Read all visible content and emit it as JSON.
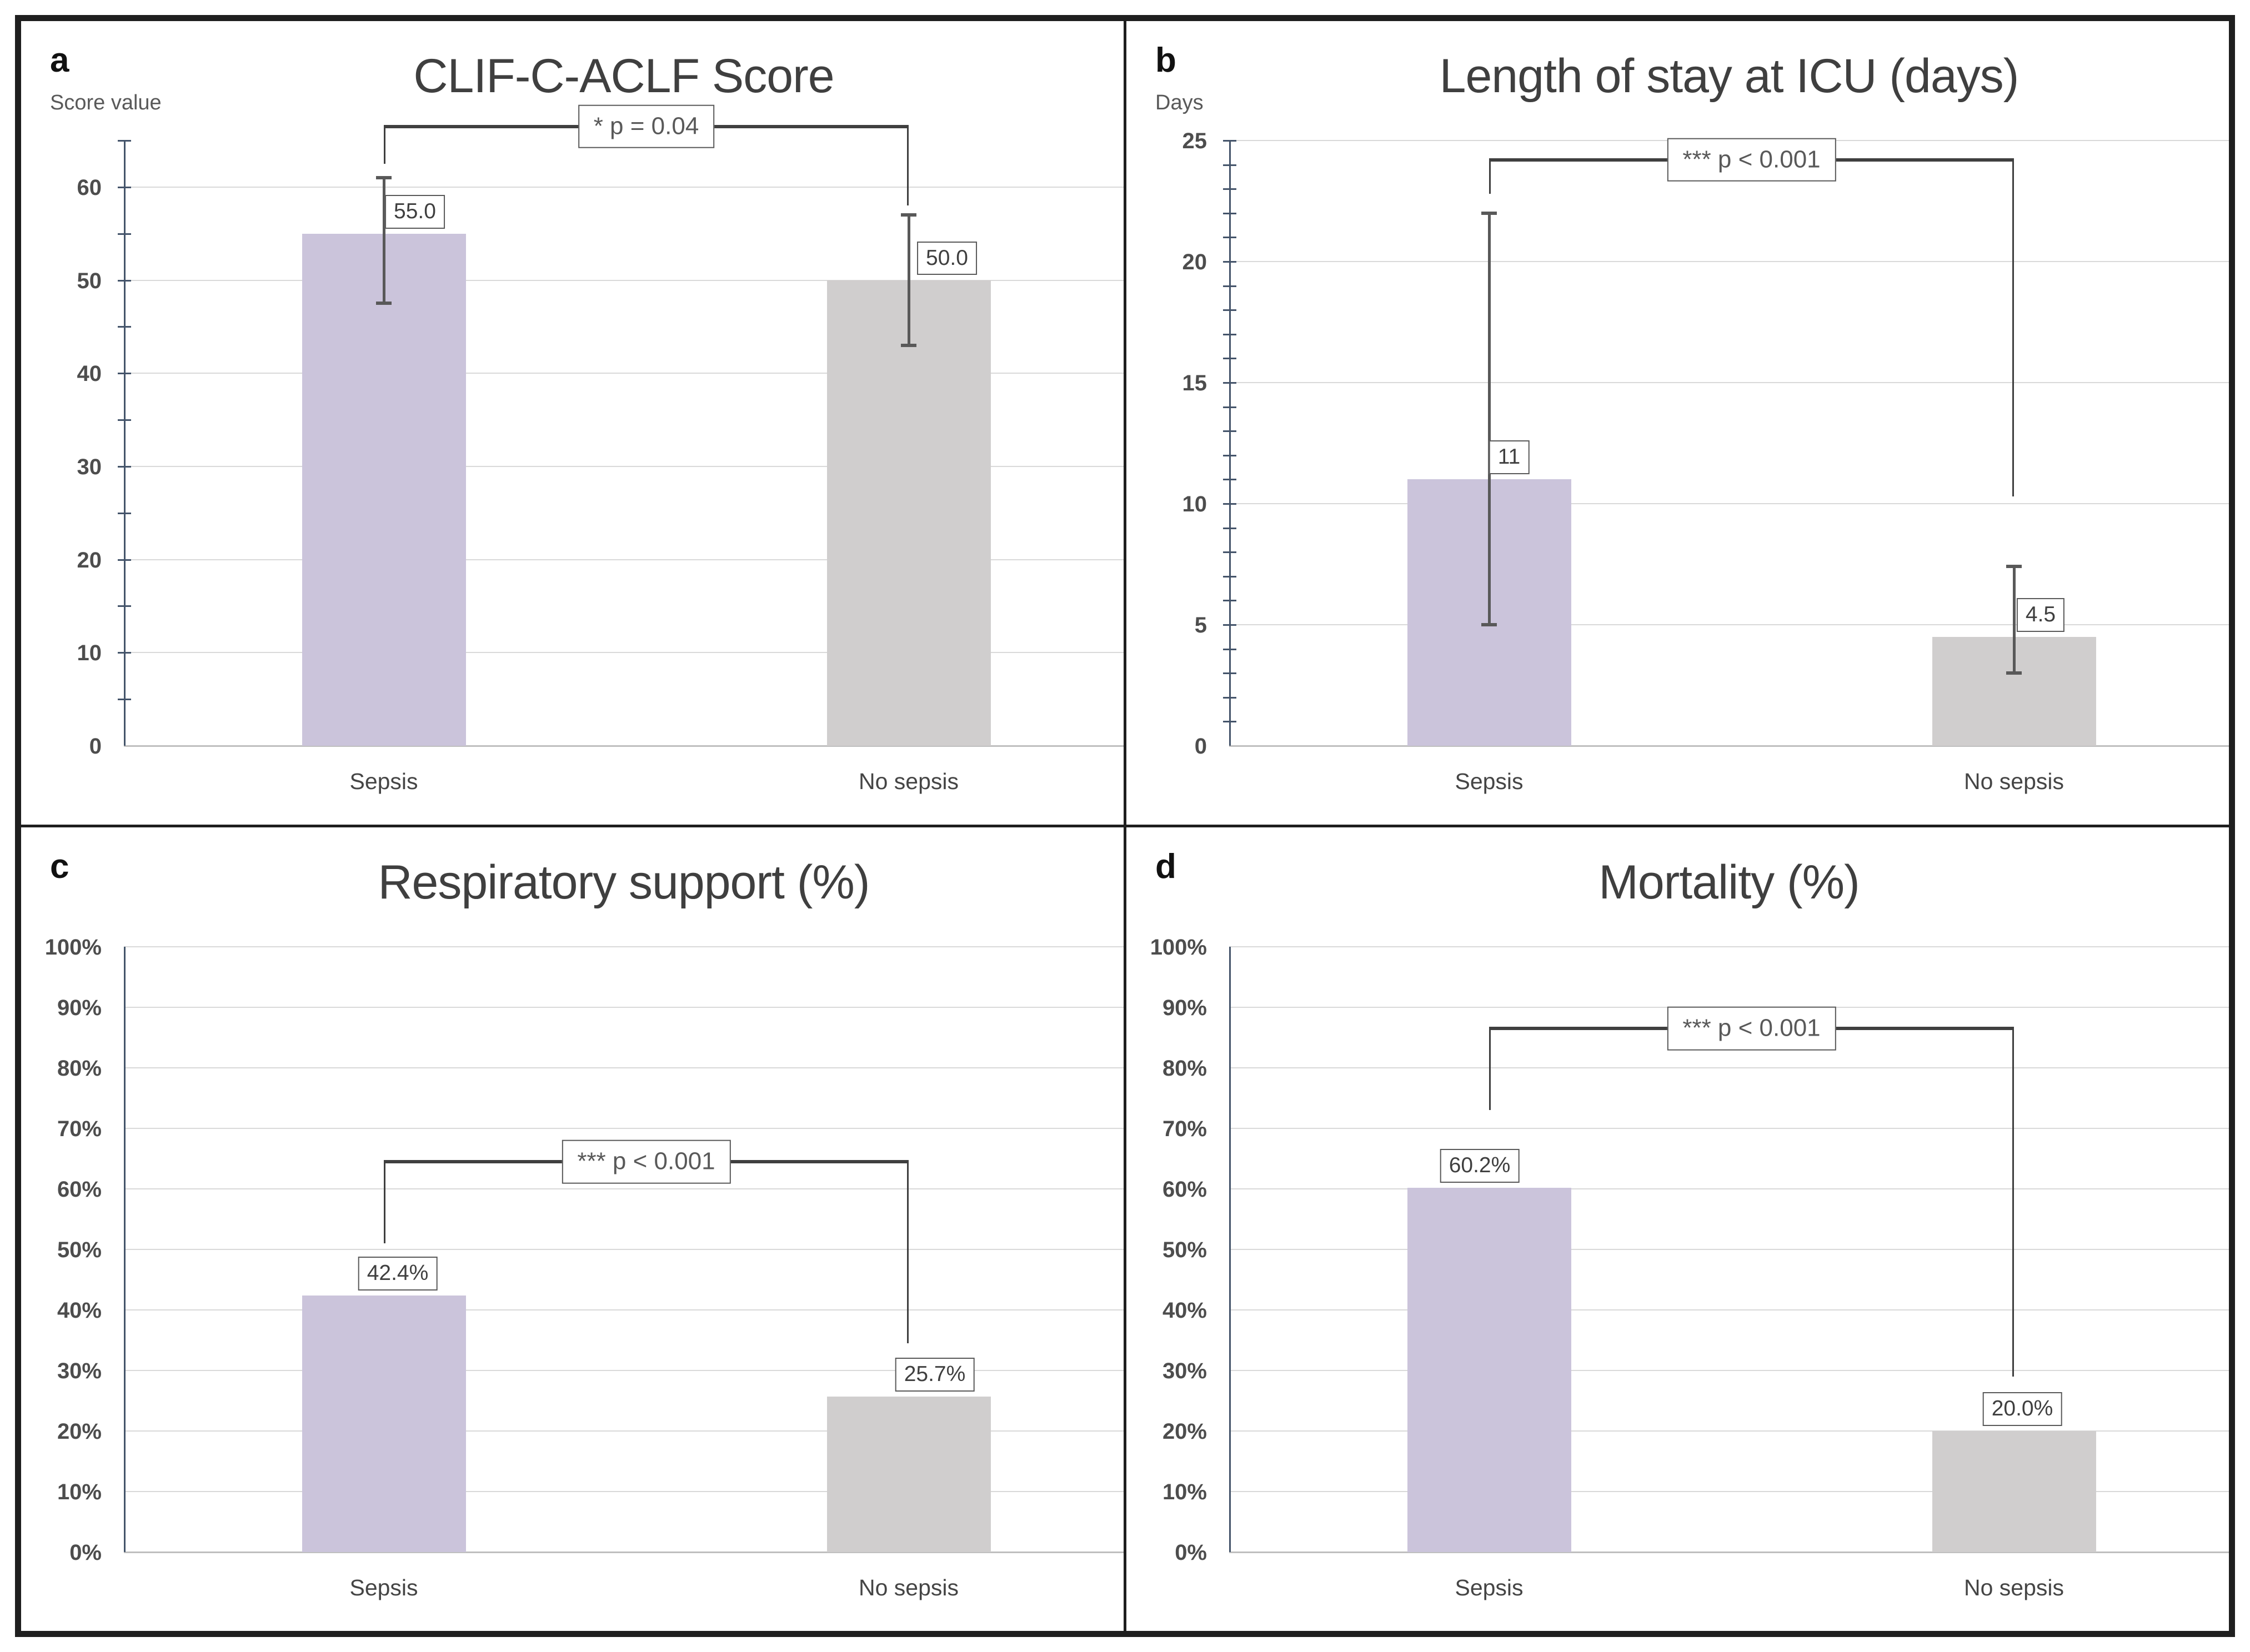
{
  "figure": {
    "description": "Four-panel bar chart figure comparing Sepsis vs No sepsis groups",
    "frame_color": "#1f1f1f",
    "background": "#ffffff"
  },
  "style": {
    "bar_color_sepsis": "#cbc4db",
    "bar_color_no_sepsis": "#d0cece",
    "axis_color": "#44546a",
    "gridline_color": "#d9d9d9",
    "error_bar_color": "#595959",
    "bracket_color": "#3f3f3f",
    "text_dark": "#3f3f3f",
    "text_gray": "#595959"
  },
  "chart_data": [
    {
      "panel_letter": "a",
      "type": "bar",
      "title": "CLIF-C-ACLF Score",
      "ylabel": "Score value",
      "categories": [
        "Sepsis",
        "No sepsis"
      ],
      "values": [
        55.0,
        50.0
      ],
      "value_labels": [
        "55.0",
        "50.0"
      ],
      "error_bars": [
        {
          "low": 47.5,
          "high": 61.0
        },
        {
          "low": 43.0,
          "high": 57.0
        }
      ],
      "ylim": [
        0,
        65
      ],
      "ytick_step": 10,
      "ytick_label_max": 60,
      "yminor_step": 5,
      "ytick_format": "plain",
      "grid": true,
      "legend": "none",
      "significance": {
        "label": "* p = 0.04",
        "line_y": 66.5,
        "left_drop_to": 62.5,
        "right_drop_to": 58.0
      },
      "label_dx": [
        56,
        69
      ]
    },
    {
      "panel_letter": "b",
      "type": "bar",
      "title": "Length of stay at ICU (days)",
      "ylabel": "Days",
      "categories": [
        "Sepsis",
        "No sepsis"
      ],
      "values": [
        11,
        4.5
      ],
      "value_labels": [
        "11",
        "4.5"
      ],
      "error_bars": [
        {
          "low": 5.0,
          "high": 22.0
        },
        {
          "low": 3.0,
          "high": 7.4
        }
      ],
      "ylim": [
        0,
        25
      ],
      "ytick_step": 5,
      "ytick_label_max": 25,
      "yminor_step": 1,
      "ytick_format": "plain",
      "grid": true,
      "legend": "none",
      "significance": {
        "label": "*** p < 0.001",
        "line_y": 24.2,
        "left_drop_to": 22.8,
        "right_drop_to": 10.3
      },
      "label_dx": [
        36,
        48
      ]
    },
    {
      "panel_letter": "c",
      "type": "bar",
      "title": "Respiratory support (%)",
      "ylabel": "",
      "categories": [
        "Sepsis",
        "No sepsis"
      ],
      "values": [
        42.4,
        25.7
      ],
      "value_labels": [
        "42.4%",
        "25.7%"
      ],
      "error_bars": null,
      "ylim": [
        0,
        100
      ],
      "ytick_step": 10,
      "ytick_label_max": 100,
      "yminor_step": null,
      "ytick_format": "percent",
      "grid": true,
      "legend": "none",
      "significance": {
        "label": "*** p < 0.001",
        "line_y": 64.5,
        "left_drop_to": 51.0,
        "right_drop_to": 34.5
      },
      "label_dx": [
        25,
        47
      ]
    },
    {
      "panel_letter": "d",
      "type": "bar",
      "title": "Mortality (%)",
      "ylabel": "",
      "categories": [
        "Sepsis",
        "No sepsis"
      ],
      "values": [
        60.2,
        20.0
      ],
      "value_labels": [
        "60.2%",
        "20.0%"
      ],
      "error_bars": null,
      "ylim": [
        0,
        100
      ],
      "ytick_step": 10,
      "ytick_label_max": 100,
      "yminor_step": null,
      "ytick_format": "percent",
      "grid": true,
      "legend": "none",
      "significance": {
        "label": "*** p < 0.001",
        "line_y": 86.5,
        "left_drop_to": 73.0,
        "right_drop_to": 29.0
      },
      "label_dx": [
        -17,
        15
      ]
    }
  ]
}
